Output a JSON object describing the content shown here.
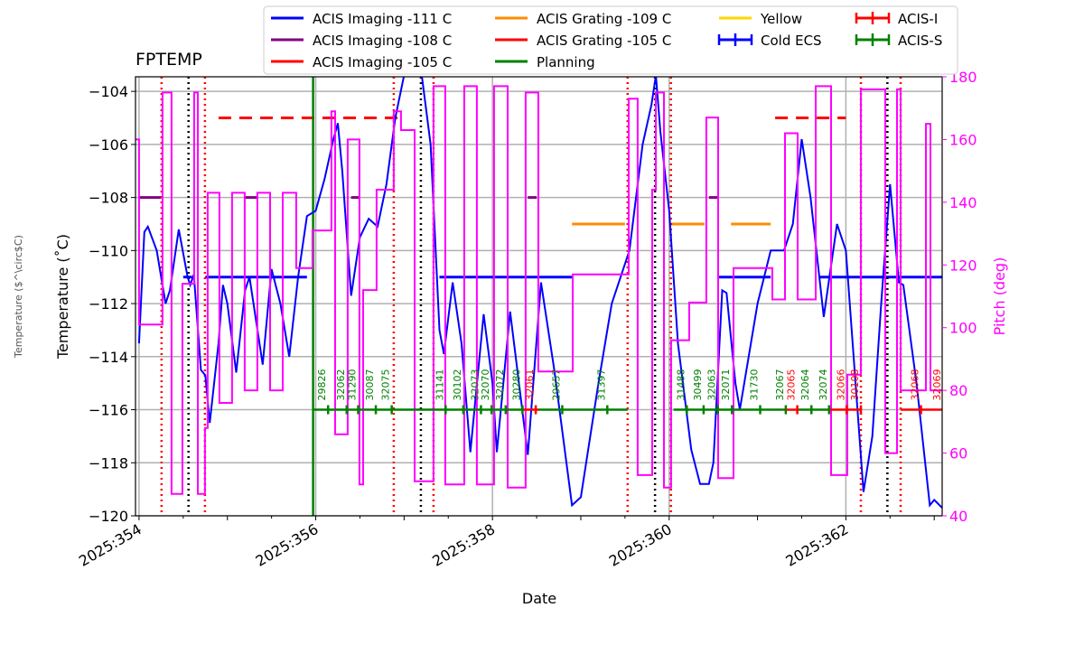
{
  "chart_data": {
    "type": "line",
    "title": "FPTEMP",
    "xlabel": "Date",
    "ylabel": "Temperature ($^\\circ$C)",
    "ylabel_display": "Temperature (˚C)",
    "y2label": "Pitch (deg)",
    "xlim": [
      353.96,
      363.09
    ],
    "ylim": [
      -120,
      -103.45
    ],
    "y2lim": [
      40,
      180
    ],
    "xticks": [
      {
        "v": 354,
        "label": "2025:354"
      },
      {
        "v": 356,
        "label": "2025:356"
      },
      {
        "v": 358,
        "label": "2025:358"
      },
      {
        "v": 360,
        "label": "2025:360"
      },
      {
        "v": 362,
        "label": "2025:362"
      }
    ],
    "yticks": [
      -120,
      -118,
      -116,
      -114,
      -112,
      -110,
      -108,
      -106,
      -104
    ],
    "y2ticks": [
      40,
      60,
      80,
      100,
      120,
      140,
      160,
      180
    ],
    "grid": true,
    "legend_placement": "top",
    "colors": {
      "temp": "#0000ff",
      "pitch": "#ff00ff",
      "imag111": "#0000ff",
      "imag108": "#800080",
      "imag105": "#ff0000",
      "grat109": "#ff8c00",
      "grat105": "#ff0000",
      "planning": "#008000",
      "yellow": "#ffd700",
      "acisI": "#ff0000",
      "acisS": "#008000"
    },
    "legend": [
      {
        "label": "ACIS Imaging -111 C",
        "color": "#0000ff",
        "kind": "line"
      },
      {
        "label": "ACIS Imaging -108 C",
        "color": "#800080",
        "kind": "line"
      },
      {
        "label": "ACIS Imaging -105 C",
        "color": "#ff0000",
        "kind": "line"
      },
      {
        "label": "ACIS Grating -109 C",
        "color": "#ff8c00",
        "kind": "line"
      },
      {
        "label": "ACIS Grating -105 C",
        "color": "#ff0000",
        "kind": "line"
      },
      {
        "label": "Planning",
        "color": "#008000",
        "kind": "line"
      },
      {
        "label": "Yellow",
        "color": "#ffd700",
        "kind": "line"
      },
      {
        "label": "Cold ECS",
        "color": "#0000ff",
        "kind": "err"
      },
      {
        "label": "ACIS-I",
        "color": "#ff0000",
        "kind": "err"
      },
      {
        "label": "ACIS-S",
        "color": "#008000",
        "kind": "err"
      }
    ],
    "temperature": [
      [
        354.0,
        -113.5
      ],
      [
        354.06,
        -109.3
      ],
      [
        354.1,
        -109.1
      ],
      [
        354.2,
        -110
      ],
      [
        354.3,
        -112
      ],
      [
        354.35,
        -111.5
      ],
      [
        354.45,
        -109.2
      ],
      [
        354.55,
        -111
      ],
      [
        354.58,
        -111.3
      ],
      [
        354.62,
        -110.9
      ],
      [
        354.7,
        -114.5
      ],
      [
        354.75,
        -114.7
      ],
      [
        354.8,
        -116.5
      ],
      [
        354.9,
        -113.5
      ],
      [
        354.95,
        -111.3
      ],
      [
        355.0,
        -112
      ],
      [
        355.1,
        -114.6
      ],
      [
        355.2,
        -111.5
      ],
      [
        355.25,
        -111
      ],
      [
        355.4,
        -114.3
      ],
      [
        355.5,
        -110.7
      ],
      [
        355.6,
        -112
      ],
      [
        355.7,
        -114
      ],
      [
        355.8,
        -111
      ],
      [
        355.9,
        -108.7
      ],
      [
        356.0,
        -108.5
      ],
      [
        356.1,
        -107.3
      ],
      [
        356.2,
        -105.8
      ],
      [
        356.25,
        -105.2
      ],
      [
        356.3,
        -107
      ],
      [
        356.4,
        -111.7
      ],
      [
        356.5,
        -109.5
      ],
      [
        356.6,
        -108.8
      ],
      [
        356.7,
        -109.1
      ],
      [
        356.8,
        -107.5
      ],
      [
        356.9,
        -105
      ],
      [
        357.0,
        -103.4
      ],
      [
        357.2,
        -103.4
      ],
      [
        357.3,
        -106
      ],
      [
        357.4,
        -113
      ],
      [
        357.45,
        -113.9
      ],
      [
        357.55,
        -111.2
      ],
      [
        357.65,
        -113.5
      ],
      [
        357.75,
        -117.6
      ],
      [
        357.9,
        -112.4
      ],
      [
        358.0,
        -115
      ],
      [
        358.05,
        -117.6
      ],
      [
        358.2,
        -112.3
      ],
      [
        358.3,
        -115
      ],
      [
        358.4,
        -117.7
      ],
      [
        358.55,
        -111.2
      ],
      [
        358.7,
        -114.5
      ],
      [
        358.9,
        -119.6
      ],
      [
        359.0,
        -119.3
      ],
      [
        359.2,
        -115
      ],
      [
        359.35,
        -112
      ],
      [
        359.55,
        -110
      ],
      [
        359.7,
        -106
      ],
      [
        359.8,
        -104.5
      ],
      [
        359.85,
        -103.4
      ],
      [
        359.9,
        -105.5
      ],
      [
        360.0,
        -108.5
      ],
      [
        360.1,
        -113.5
      ],
      [
        360.25,
        -117.5
      ],
      [
        360.35,
        -118.8
      ],
      [
        360.45,
        -118.8
      ],
      [
        360.5,
        -118
      ],
      [
        360.6,
        -111.5
      ],
      [
        360.65,
        -111.6
      ],
      [
        360.75,
        -115
      ],
      [
        360.8,
        -116
      ],
      [
        360.9,
        -114
      ],
      [
        361.0,
        -112
      ],
      [
        361.15,
        -110
      ],
      [
        361.3,
        -110
      ],
      [
        361.4,
        -109
      ],
      [
        361.5,
        -105.8
      ],
      [
        361.6,
        -108
      ],
      [
        361.75,
        -112.5
      ],
      [
        361.9,
        -109
      ],
      [
        362.0,
        -110
      ],
      [
        362.2,
        -119.1
      ],
      [
        362.3,
        -117
      ],
      [
        362.4,
        -112
      ],
      [
        362.5,
        -107.5
      ],
      [
        362.6,
        -111.2
      ],
      [
        362.65,
        -111.3
      ],
      [
        362.8,
        -115
      ],
      [
        362.95,
        -119.6
      ],
      [
        363.0,
        -119.4
      ],
      [
        363.09,
        -119.7
      ]
    ],
    "pitch_steps": [
      [
        353.96,
        160
      ],
      [
        354.0,
        101
      ],
      [
        354.266,
        175
      ],
      [
        354.368,
        47
      ],
      [
        354.491,
        114
      ],
      [
        354.624,
        175
      ],
      [
        354.665,
        47
      ],
      [
        354.746,
        68
      ],
      [
        354.777,
        143
      ],
      [
        354.91,
        76
      ],
      [
        355.053,
        143
      ],
      [
        355.196,
        80
      ],
      [
        355.339,
        143
      ],
      [
        355.483,
        80
      ],
      [
        355.626,
        143
      ],
      [
        355.779,
        119
      ],
      [
        355.963,
        131
      ],
      [
        356.178,
        169
      ],
      [
        356.219,
        66
      ],
      [
        356.362,
        160
      ],
      [
        356.495,
        50
      ],
      [
        356.536,
        112
      ],
      [
        356.689,
        144
      ],
      [
        356.883,
        169
      ],
      [
        356.965,
        163
      ],
      [
        357.119,
        51
      ],
      [
        357.333,
        177
      ],
      [
        357.466,
        50
      ],
      [
        357.681,
        177
      ],
      [
        357.824,
        50
      ],
      [
        358.018,
        177
      ],
      [
        358.172,
        49
      ],
      [
        358.376,
        175
      ],
      [
        358.519,
        86
      ],
      [
        358.908,
        117
      ],
      [
        359.542,
        173
      ],
      [
        359.644,
        53
      ],
      [
        359.808,
        144
      ],
      [
        359.849,
        175
      ],
      [
        359.941,
        49
      ],
      [
        360.022,
        96
      ],
      [
        360.227,
        108
      ],
      [
        360.421,
        167
      ],
      [
        360.554,
        52
      ],
      [
        360.728,
        119
      ],
      [
        361.168,
        109
      ],
      [
        361.311,
        162
      ],
      [
        361.454,
        109
      ],
      [
        361.659,
        177
      ],
      [
        361.832,
        53
      ],
      [
        362.016,
        85
      ],
      [
        362.17,
        176
      ],
      [
        362.446,
        60
      ],
      [
        362.579,
        176
      ],
      [
        362.62,
        80
      ],
      [
        362.906,
        165
      ],
      [
        362.957,
        80
      ],
      [
        363.09,
        80
      ]
    ],
    "limits": [
      {
        "key": "imag111",
        "value": -111,
        "segments": [
          [
            354.5,
            354.6
          ],
          [
            354.75,
            355.9
          ],
          [
            357.4,
            358.9
          ],
          [
            360.55,
            361.15
          ],
          [
            361.7,
            363.09
          ]
        ]
      },
      {
        "key": "imag108",
        "value": -108,
        "segments": [
          [
            354.0,
            354.25
          ],
          [
            355.2,
            355.35
          ],
          [
            356.4,
            356.5
          ],
          [
            358.4,
            358.5
          ],
          [
            360.45,
            360.55
          ]
        ]
      },
      {
        "key": "imag105",
        "value": -105,
        "segments": [
          [
            354.9,
            357.0
          ],
          [
            361.2,
            362.0
          ]
        ]
      },
      {
        "key": "grat109",
        "value": -109,
        "segments": [
          [
            358.9,
            359.5
          ],
          [
            360.0,
            360.4
          ],
          [
            360.7,
            361.15
          ]
        ]
      }
    ],
    "planning_line": 355.97,
    "red_dotted": [
      354.255,
      354.746,
      356.883,
      357.333,
      359.53,
      360.02,
      362.17,
      362.62
    ],
    "black_dotted": [
      354.56,
      357.19,
      359.84,
      362.47
    ],
    "obsids": [
      {
        "x": 356.14,
        "id": "29826",
        "inst": "S"
      },
      {
        "x": 356.35,
        "id": "32062",
        "inst": "S"
      },
      {
        "x": 356.48,
        "id": "31290",
        "inst": "S"
      },
      {
        "x": 356.68,
        "id": "30087",
        "inst": "S"
      },
      {
        "x": 356.86,
        "id": "32075",
        "inst": "S"
      },
      {
        "x": 357.47,
        "id": "31141",
        "inst": "S"
      },
      {
        "x": 357.67,
        "id": "30102",
        "inst": "S"
      },
      {
        "x": 357.87,
        "id": "32073",
        "inst": "S"
      },
      {
        "x": 357.99,
        "id": "32070",
        "inst": "S"
      },
      {
        "x": 358.15,
        "id": "32072",
        "inst": "S"
      },
      {
        "x": 358.34,
        "id": "30280",
        "inst": "S"
      },
      {
        "x": 358.49,
        "id": "32061",
        "inst": "I"
      },
      {
        "x": 358.79,
        "id": "29657",
        "inst": "S"
      },
      {
        "x": 359.3,
        "id": "31397",
        "inst": "S"
      },
      {
        "x": 360.2,
        "id": "31488",
        "inst": "S"
      },
      {
        "x": 360.39,
        "id": "30499",
        "inst": "S"
      },
      {
        "x": 360.55,
        "id": "32063",
        "inst": "S"
      },
      {
        "x": 360.71,
        "id": "32071",
        "inst": "S"
      },
      {
        "x": 361.03,
        "id": "31730",
        "inst": "S"
      },
      {
        "x": 361.32,
        "id": "32067",
        "inst": "S"
      },
      {
        "x": 361.45,
        "id": "32065",
        "inst": "I"
      },
      {
        "x": 361.61,
        "id": "32064",
        "inst": "S"
      },
      {
        "x": 361.81,
        "id": "32074",
        "inst": "S"
      },
      {
        "x": 362.01,
        "id": "32066",
        "inst": "I"
      },
      {
        "x": 362.17,
        "id": "30108",
        "inst": "I"
      },
      {
        "x": 362.85,
        "id": "32068",
        "inst": "I"
      },
      {
        "x": 363.1,
        "id": "32069",
        "inst": "I"
      }
    ],
    "obs_level": -116,
    "obs_segments": [
      {
        "inst": "S",
        "from": 355.97,
        "to": 358.35
      },
      {
        "inst": "I",
        "from": 358.35,
        "to": 358.52
      },
      {
        "inst": "S",
        "from": 358.52,
        "to": 359.53
      },
      {
        "inst": "S",
        "from": 360.05,
        "to": 361.3
      },
      {
        "inst": "I",
        "from": 361.3,
        "to": 361.45
      },
      {
        "inst": "S",
        "from": 361.45,
        "to": 361.81
      },
      {
        "inst": "I",
        "from": 361.81,
        "to": 362.17
      },
      {
        "inst": "I",
        "from": 362.62,
        "to": 363.09
      }
    ]
  }
}
